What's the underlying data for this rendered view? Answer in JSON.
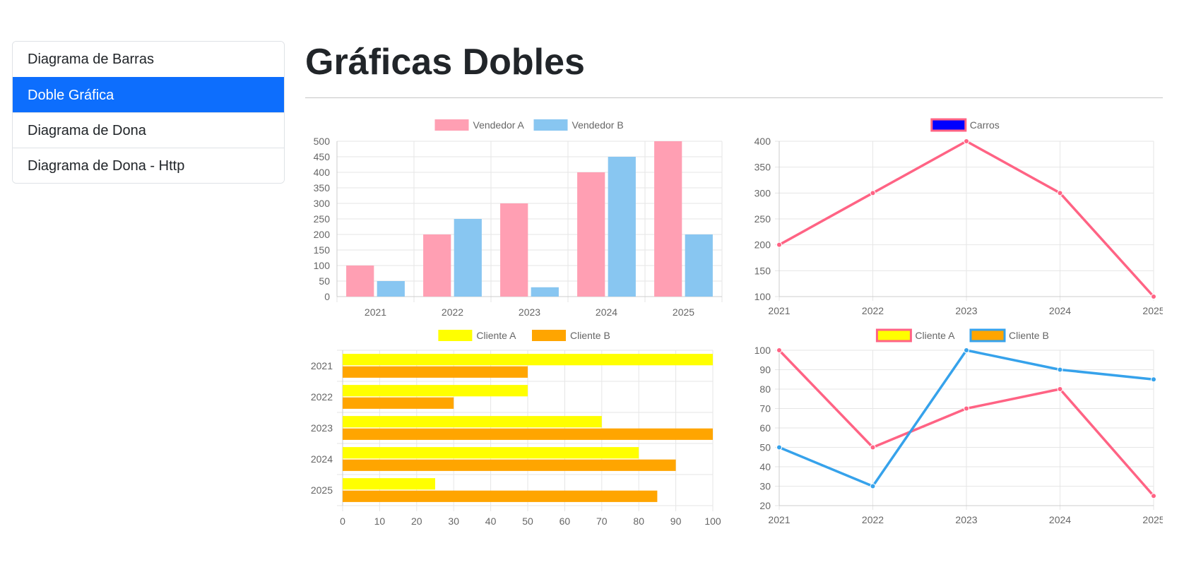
{
  "sidebar": {
    "items": [
      {
        "label": "Diagrama de Barras",
        "active": false
      },
      {
        "label": "Doble Gráfica",
        "active": true
      },
      {
        "label": "Diagrama de Dona",
        "active": false
      },
      {
        "label": "Diagrama de Dona - Http",
        "active": false
      }
    ]
  },
  "page": {
    "title": "Gráficas Dobles"
  },
  "chart_data": [
    {
      "type": "bar",
      "orientation": "vertical",
      "categories": [
        "2021",
        "2022",
        "2023",
        "2024",
        "2025"
      ],
      "series": [
        {
          "name": "Vendedor A",
          "values": [
            100,
            200,
            300,
            400,
            500
          ],
          "color": "#ff9fb3"
        },
        {
          "name": "Vendedor B",
          "values": [
            50,
            250,
            30,
            450,
            200
          ],
          "color": "#88c6f1"
        }
      ],
      "ylim": [
        0,
        500
      ],
      "yticks": [
        0,
        50,
        100,
        150,
        200,
        250,
        300,
        350,
        400,
        450,
        500
      ],
      "grid": true,
      "legend": "top-center"
    },
    {
      "type": "line",
      "categories": [
        "2021",
        "2022",
        "2023",
        "2024",
        "2025"
      ],
      "series": [
        {
          "name": "Carros",
          "values": [
            200,
            300,
            400,
            300,
            100
          ],
          "color": "#ff6384",
          "legend_fill": "#0000ff"
        }
      ],
      "ylim": [
        100,
        400
      ],
      "yticks": [
        100,
        150,
        200,
        250,
        300,
        350,
        400
      ],
      "grid": true,
      "legend": "top-center"
    },
    {
      "type": "bar",
      "orientation": "horizontal",
      "categories": [
        "2021",
        "2022",
        "2023",
        "2024",
        "2025"
      ],
      "series": [
        {
          "name": "Cliente A",
          "values": [
            100,
            50,
            70,
            80,
            25
          ],
          "color": "#ffff00"
        },
        {
          "name": "Cliente B",
          "values": [
            50,
            30,
            100,
            90,
            85
          ],
          "color": "#ffa500"
        }
      ],
      "xlim": [
        0,
        100
      ],
      "xticks": [
        0,
        10,
        20,
        30,
        40,
        50,
        60,
        70,
        80,
        90,
        100
      ],
      "grid": true,
      "legend": "top-center"
    },
    {
      "type": "line",
      "categories": [
        "2021",
        "2022",
        "2023",
        "2024",
        "2025"
      ],
      "series": [
        {
          "name": "Cliente A",
          "values": [
            100,
            50,
            70,
            80,
            25
          ],
          "color": "#ff6384",
          "legend_fill": "#ffff00"
        },
        {
          "name": "Cliente B",
          "values": [
            50,
            30,
            100,
            90,
            85
          ],
          "color": "#36a2eb",
          "legend_fill": "#ffa500"
        }
      ],
      "ylim": [
        20,
        100
      ],
      "yticks": [
        20,
        30,
        40,
        50,
        60,
        70,
        80,
        90,
        100
      ],
      "grid": true,
      "legend": "top-center"
    }
  ]
}
